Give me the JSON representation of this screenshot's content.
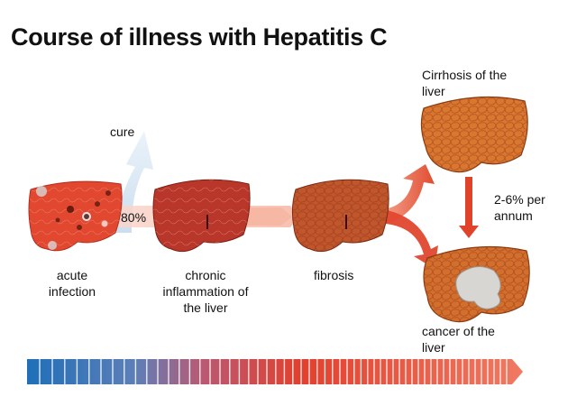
{
  "title": "Course of illness with Hepatitis C",
  "labels": {
    "cure": "cure",
    "cure_percent": "80%",
    "acute_line1": "acute",
    "acute_line2": "infection",
    "chronic_line1": "chronic",
    "chronic_line2": "inflammation of",
    "chronic_line3": "the liver",
    "fibrosis": "fibrosis",
    "cirrhosis_line1": "Cirrhosis of the",
    "cirrhosis_line2": "liver",
    "rate_line1": "2-6% per",
    "rate_line2": "annum",
    "cancer_line1": "cancer of the",
    "cancer_line2": "liver"
  },
  "stages": [
    "acute infection",
    "chronic inflammation of the liver",
    "fibrosis",
    "Cirrhosis of the liver",
    "cancer of the liver"
  ],
  "colors": {
    "acute_liver": "#e2472f",
    "chronic_liver": "#b8362a",
    "fibrosis_liver": "#c0562b",
    "cirrhosis_liver": "#d9772f",
    "cancer_liver": "#d36f2c",
    "arrow_red": "#e0432a",
    "cure_arrow": "#d6e6f5",
    "timeline_start": "#1f6fb8",
    "timeline_end": "#e33a28"
  }
}
